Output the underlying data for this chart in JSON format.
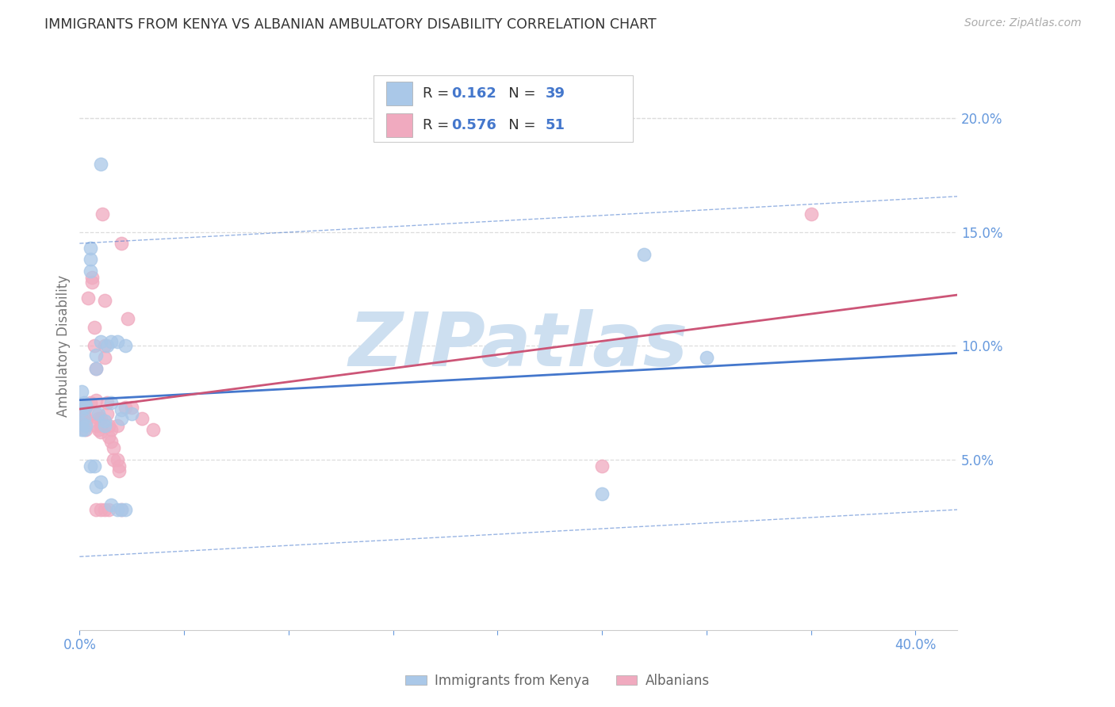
{
  "title": "IMMIGRANTS FROM KENYA VS ALBANIAN AMBULATORY DISABILITY CORRELATION CHART",
  "source": "Source: ZipAtlas.com",
  "ylabel": "Ambulatory Disability",
  "xlim": [
    0.0,
    0.42
  ],
  "ylim": [
    -0.025,
    0.225
  ],
  "xticks": [
    0.0,
    0.05,
    0.1,
    0.15,
    0.2,
    0.25,
    0.3,
    0.35,
    0.4
  ],
  "xtick_labels": [
    "0.0%",
    "",
    "",
    "",
    "",
    "",
    "",
    "",
    "40.0%"
  ],
  "yticks_right": [
    0.05,
    0.1,
    0.15,
    0.2
  ],
  "ytick_labels_right": [
    "5.0%",
    "10.0%",
    "15.0%",
    "20.0%"
  ],
  "kenya_color": "#aac8e8",
  "albanian_color": "#f0aabf",
  "kenya_line_color": "#4477cc",
  "albanian_line_color": "#cc5577",
  "axis_color": "#6699dd",
  "grid_color": "#dddddd",
  "background_color": "#ffffff",
  "title_color": "#333333",
  "title_fontsize": 12.5,
  "source_fontsize": 10,
  "watermark_text": "ZIPatlas",
  "watermark_color": "#cddff0",
  "legend_text_color": "#333333",
  "legend_value_color": "#4477cc",
  "kenya_N": 39,
  "albanian_N": 51,
  "kenya_R": "0.162",
  "albanian_R": "0.576",
  "kenya_scatter_x": [
    0.001,
    0.001,
    0.001,
    0.001,
    0.002,
    0.002,
    0.002,
    0.003,
    0.003,
    0.003,
    0.005,
    0.005,
    0.005,
    0.005,
    0.007,
    0.008,
    0.008,
    0.009,
    0.01,
    0.01,
    0.01,
    0.012,
    0.012,
    0.013,
    0.015,
    0.015,
    0.015,
    0.018,
    0.018,
    0.02,
    0.02,
    0.02,
    0.022,
    0.022,
    0.025,
    0.25,
    0.27,
    0.3,
    0.008
  ],
  "kenya_scatter_y": [
    0.072,
    0.066,
    0.063,
    0.08,
    0.075,
    0.068,
    0.063,
    0.073,
    0.065,
    0.074,
    0.143,
    0.138,
    0.133,
    0.047,
    0.047,
    0.096,
    0.09,
    0.07,
    0.18,
    0.102,
    0.04,
    0.067,
    0.065,
    0.1,
    0.102,
    0.075,
    0.03,
    0.102,
    0.028,
    0.072,
    0.068,
    0.028,
    0.1,
    0.028,
    0.07,
    0.035,
    0.14,
    0.095,
    0.038
  ],
  "albanian_scatter_x": [
    0.001,
    0.001,
    0.002,
    0.002,
    0.003,
    0.003,
    0.003,
    0.004,
    0.005,
    0.006,
    0.006,
    0.007,
    0.007,
    0.008,
    0.008,
    0.008,
    0.008,
    0.009,
    0.009,
    0.01,
    0.01,
    0.01,
    0.011,
    0.012,
    0.012,
    0.012,
    0.013,
    0.013,
    0.014,
    0.014,
    0.015,
    0.015,
    0.016,
    0.016,
    0.018,
    0.018,
    0.019,
    0.019,
    0.02,
    0.022,
    0.023,
    0.025,
    0.03,
    0.035,
    0.008,
    0.01,
    0.012,
    0.014,
    0.25,
    0.35,
    0.02
  ],
  "albanian_scatter_y": [
    0.072,
    0.068,
    0.073,
    0.07,
    0.068,
    0.066,
    0.063,
    0.121,
    0.075,
    0.13,
    0.128,
    0.108,
    0.1,
    0.09,
    0.076,
    0.07,
    0.065,
    0.068,
    0.063,
    0.068,
    0.065,
    0.062,
    0.158,
    0.12,
    0.1,
    0.095,
    0.075,
    0.07,
    0.065,
    0.06,
    0.063,
    0.058,
    0.055,
    0.05,
    0.065,
    0.05,
    0.047,
    0.045,
    0.145,
    0.073,
    0.112,
    0.073,
    0.068,
    0.063,
    0.028,
    0.028,
    0.028,
    0.028,
    0.047,
    0.158,
    0.028
  ]
}
